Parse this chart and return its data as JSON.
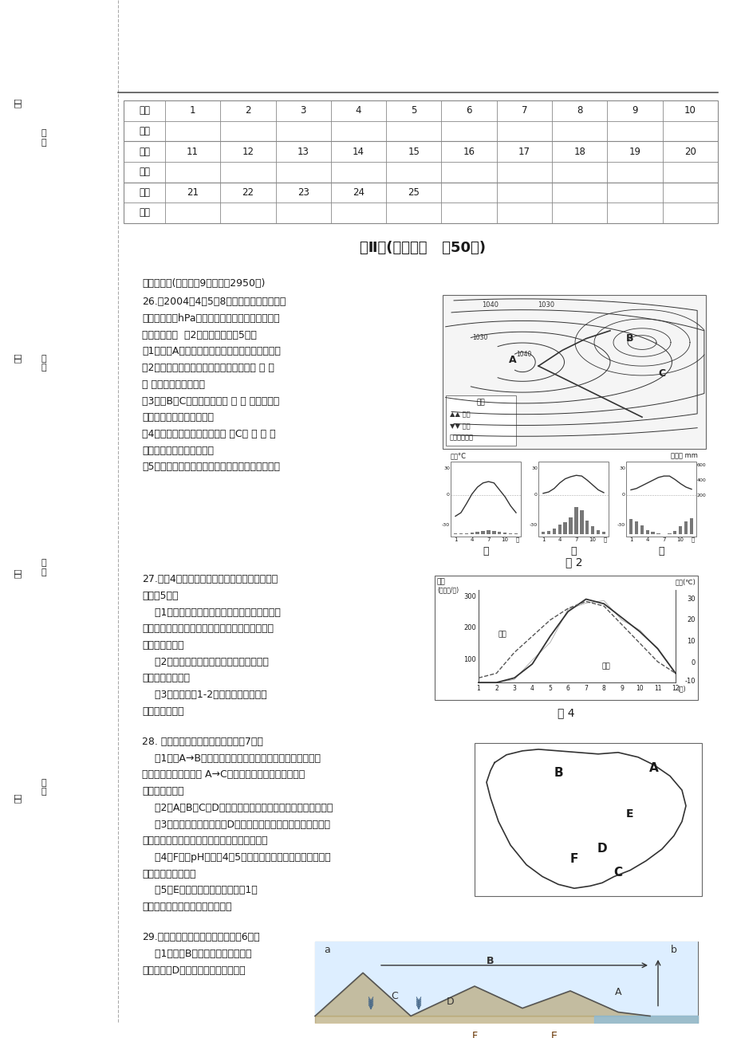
{
  "title": "第Ⅱ卷(非选择题   共50分)",
  "section2_title": "二、综合题(本大题兲9小题，共2950分)",
  "table1_header": [
    "题号",
    "1",
    "2",
    "3",
    "4",
    "5",
    "6",
    "7",
    "8",
    "9",
    "10"
  ],
  "table2_header": [
    "题号",
    "11",
    "12",
    "13",
    "14",
    "15",
    "16",
    "17",
    "18",
    "19",
    "20"
  ],
  "table3_header": [
    "题号",
    "21",
    "22",
    "23",
    "24",
    "25"
  ],
  "row_label_ti": "题号",
  "row_label_xuan": "选项",
  "q26_lines": [
    "26.读2004年4月5日8时》锋面气旋天气图「",
    "（气压单位：hPa）以及三座城市》降水量和气温",
    "月份分配图「  图2，回答问题：（5分）",
    "（1）此时A地的天气特点是＿＿＿＿＿＿＿＿＿；",
    "（2）此时最有可能发生连续性降水天气的 是 图",
    "中 的＿＿＿＿＿＿地；",
    "（3）在B、C两地中，将会出 现 刑 风、降温天",
    "气的是＿＿＿＿＿＿＿地；",
    "（4）在甲、乙、丙三图中反映 了C地 气 候 特",
    "征的是＿＿＿＿＿＿＿图。",
    "（5）图中甲处的气候类型名称是＿＿＿＿＿＿＿＿"
  ],
  "q27_lines": [
    "27.读图4《河水流量变化示意图》，回答下列问",
    "题：（5分）",
    "    （1）根据图中提供的信息判断，这条河流是以",
    "＿＿＿为主要补给的河流，径流变化与＿＿＿变化",
    "有密切的关系。",
    "    （2）这条河流的丰水期在＿＿季，原因是",
    "＿＿＿＿＿＿＿。",
    "    （3）该河流在1-2月完全断流的原因是",
    "＿＿＿＿＿＿。"
  ],
  "q28_lines": [
    "28. 读我国轮廓图，按要求回答：（7分）",
    "    （1）由A→B反映了陆地自然带的＿＿＿＿＿＿＿＿地域分",
    "异；决定陆地自然带从 A→C的地域分异规律最主要的因素",
    "是＿＿＿＿＿。",
    "    （2）A、B、C、D四地中，太阳年辐射总量最丰富的是＿＿＿",
    "    （3）受补给水源的影响，D河流量变化与＿＿＿＿＿＿变化相一",
    "致，它是我国＿＿＿＿＿（调水）工程的起点。",
    "    （4）F地是pH値小丄4．5的重酸雨区，该地的酸雨类型主要",
    "是＿＿＿＿型酸雨。",
    "    （5）E地是干旱多发地区，举出1项",
    "防御干旱的有效措施＿＿＿＿＿＿"
  ],
  "q29_lines": [
    "29.读下图，结合有关知识回答：（6分）",
    "    （1）图中B箭头表示水循环的水汽",
    "输送环节，D表示＿＿＿＿＿＿环节。"
  ],
  "bg_color": "#ffffff",
  "text_color": "#1a1a1a",
  "line_color": "#555555"
}
